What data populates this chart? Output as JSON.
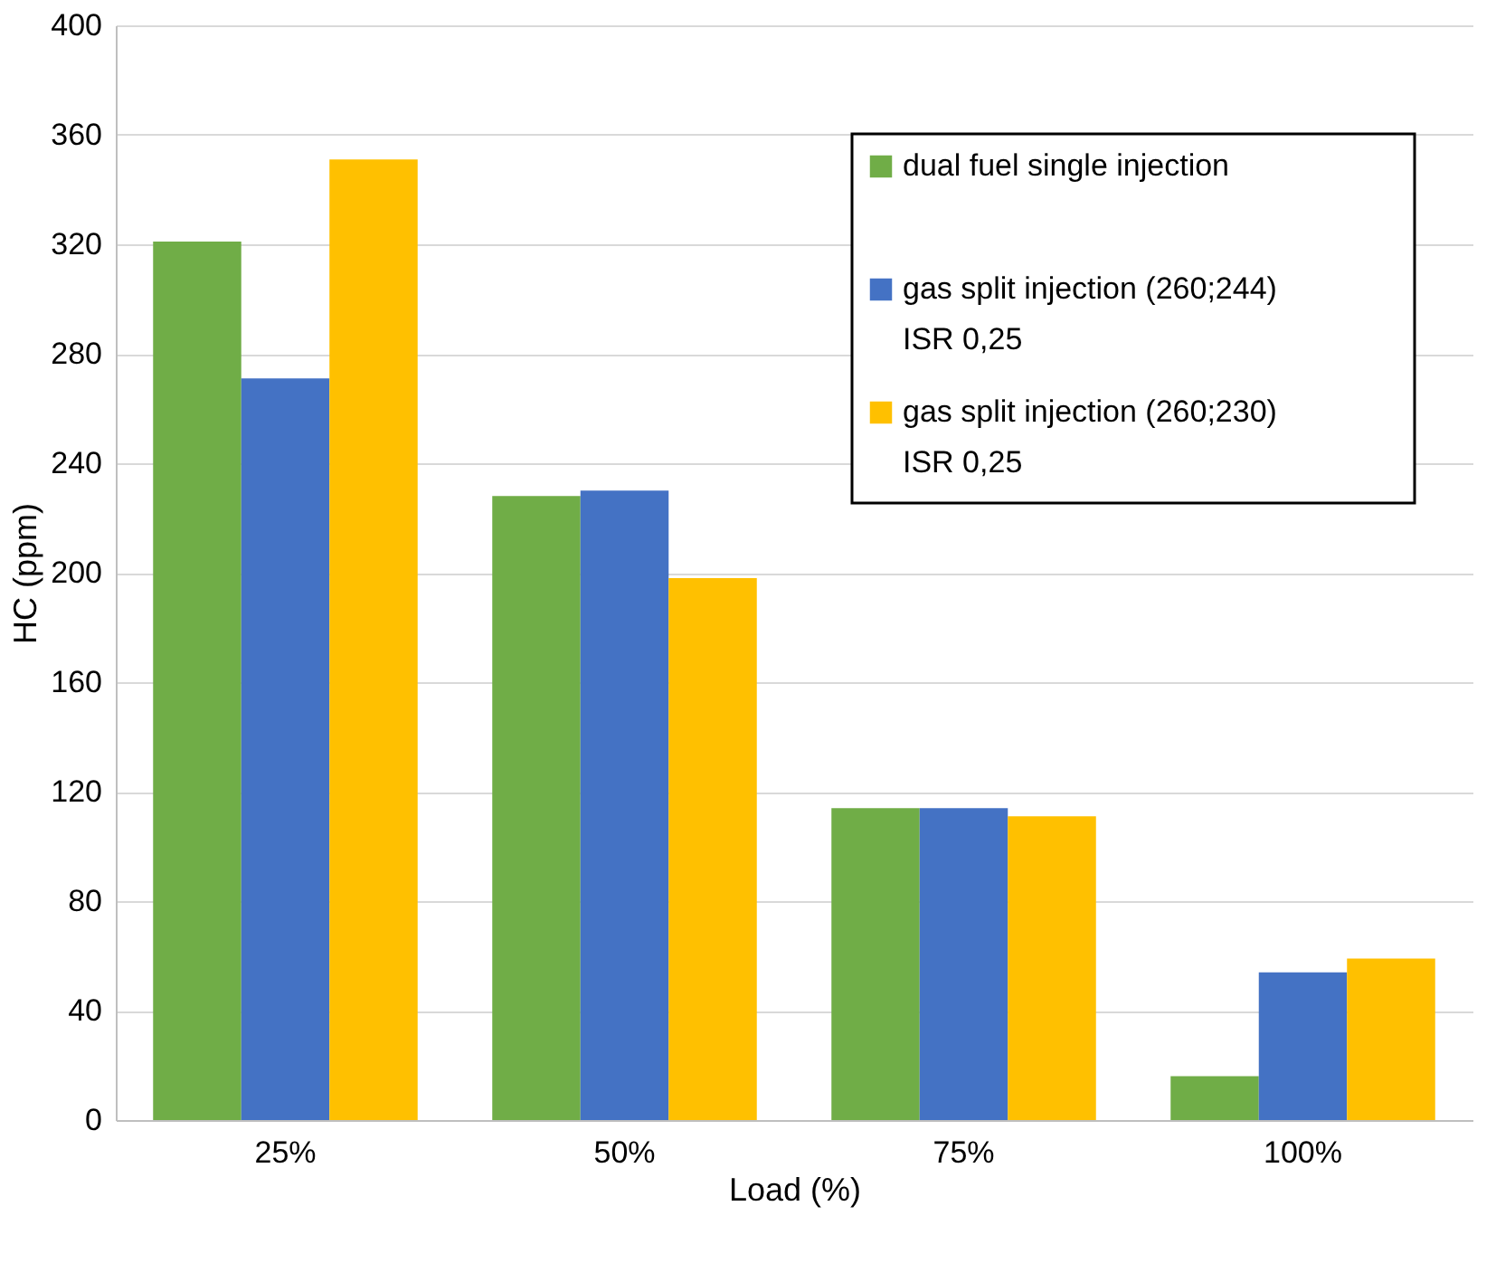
{
  "chart_data": {
    "type": "bar",
    "xlabel": "Load (%)",
    "ylabel": "HC (ppm)",
    "categories": [
      "25%",
      "50%",
      "75%",
      "100%"
    ],
    "series": [
      {
        "name": "dual fuel single injection",
        "color": "#70ad47",
        "values": [
          321,
          228,
          114,
          16
        ]
      },
      {
        "name": "gas split injection (260;244)\nISR 0,25",
        "color": "#4472c4",
        "values": [
          271,
          230,
          114,
          54
        ]
      },
      {
        "name": "gas split injection (260;230)\nISR 0,25",
        "color": "#ffc000",
        "values": [
          351,
          198,
          111,
          59
        ]
      }
    ],
    "ylim": [
      0,
      400
    ],
    "yticks": [
      0,
      40,
      80,
      120,
      160,
      200,
      240,
      280,
      320,
      360,
      400
    ],
    "grid": "y",
    "legend": "top right"
  }
}
